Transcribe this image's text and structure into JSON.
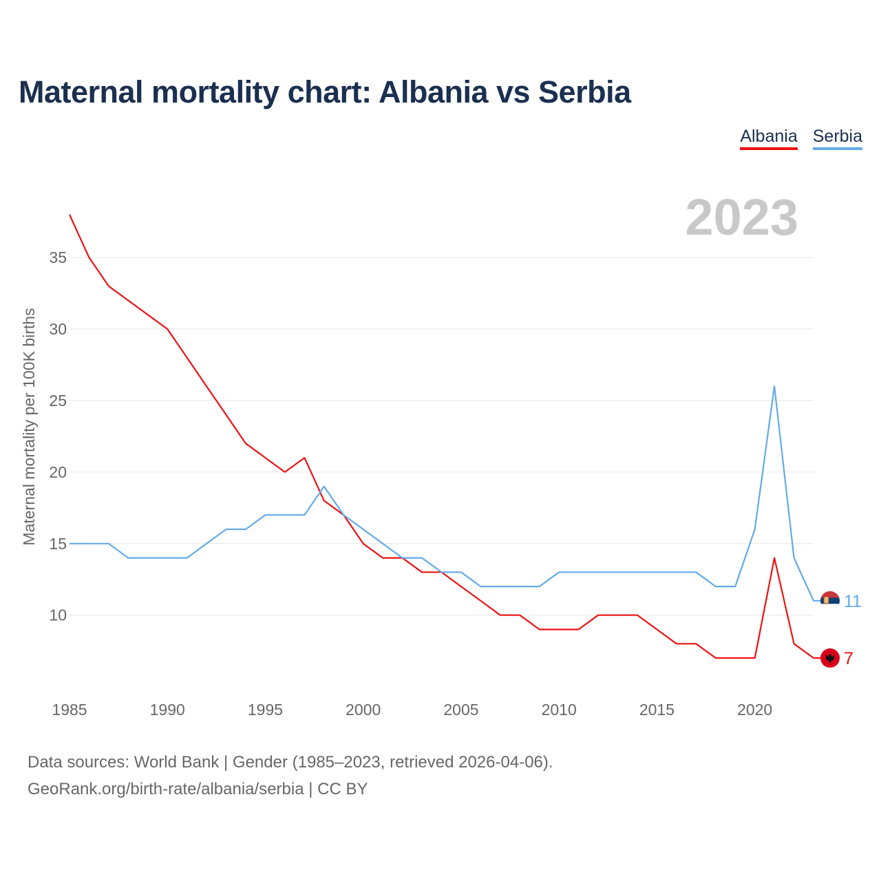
{
  "title": "Maternal mortality chart: Albania vs Serbia",
  "legend": [
    {
      "name": "Albania",
      "color": "#ee1111"
    },
    {
      "name": "Serbia",
      "color": "#62aae8"
    }
  ],
  "year_label": "2023",
  "footer": {
    "line1": "Data sources: World Bank | Gender (1985–2023, retrieved 2026-04-06).",
    "line2": "GeoRank.org/birth-rate/albania/serbia | CC BY"
  },
  "chart_data": {
    "type": "line",
    "title": "Maternal mortality chart: Albania vs Serbia",
    "xlabel": "",
    "ylabel": "Maternal mortality per 100K births",
    "xlim": [
      1985,
      2023
    ],
    "ylim": [
      4.5,
      39
    ],
    "xticks": [
      1985,
      1990,
      1995,
      2000,
      2005,
      2010,
      2015,
      2020
    ],
    "yticks": [
      10,
      15,
      20,
      25,
      30,
      35
    ],
    "grid": true,
    "legend_position": "top-right",
    "x": [
      1985,
      1986,
      1987,
      1988,
      1989,
      1990,
      1991,
      1992,
      1993,
      1994,
      1995,
      1996,
      1997,
      1998,
      1999,
      2000,
      2001,
      2002,
      2003,
      2004,
      2005,
      2006,
      2007,
      2008,
      2009,
      2010,
      2011,
      2012,
      2013,
      2014,
      2015,
      2016,
      2017,
      2018,
      2019,
      2020,
      2021,
      2022,
      2023
    ],
    "series": [
      {
        "name": "Albania",
        "color": "#ee1111",
        "end_label": "7",
        "values": [
          38,
          35,
          33,
          32,
          31,
          30,
          28,
          26,
          24,
          22,
          21,
          20,
          21,
          18,
          17,
          15,
          14,
          14,
          13,
          13,
          12,
          11,
          10,
          10,
          9,
          9,
          9,
          10,
          10,
          10,
          9,
          8,
          8,
          7,
          7,
          7,
          14,
          8,
          7
        ]
      },
      {
        "name": "Serbia",
        "color": "#62aae8",
        "end_label": "11",
        "values": [
          15,
          15,
          15,
          14,
          14,
          14,
          14,
          15,
          16,
          16,
          17,
          17,
          17,
          19,
          17,
          16,
          15,
          14,
          14,
          13,
          13,
          12,
          12,
          12,
          12,
          13,
          13,
          13,
          13,
          13,
          13,
          13,
          13,
          12,
          12,
          16,
          26,
          14,
          11
        ]
      }
    ]
  }
}
